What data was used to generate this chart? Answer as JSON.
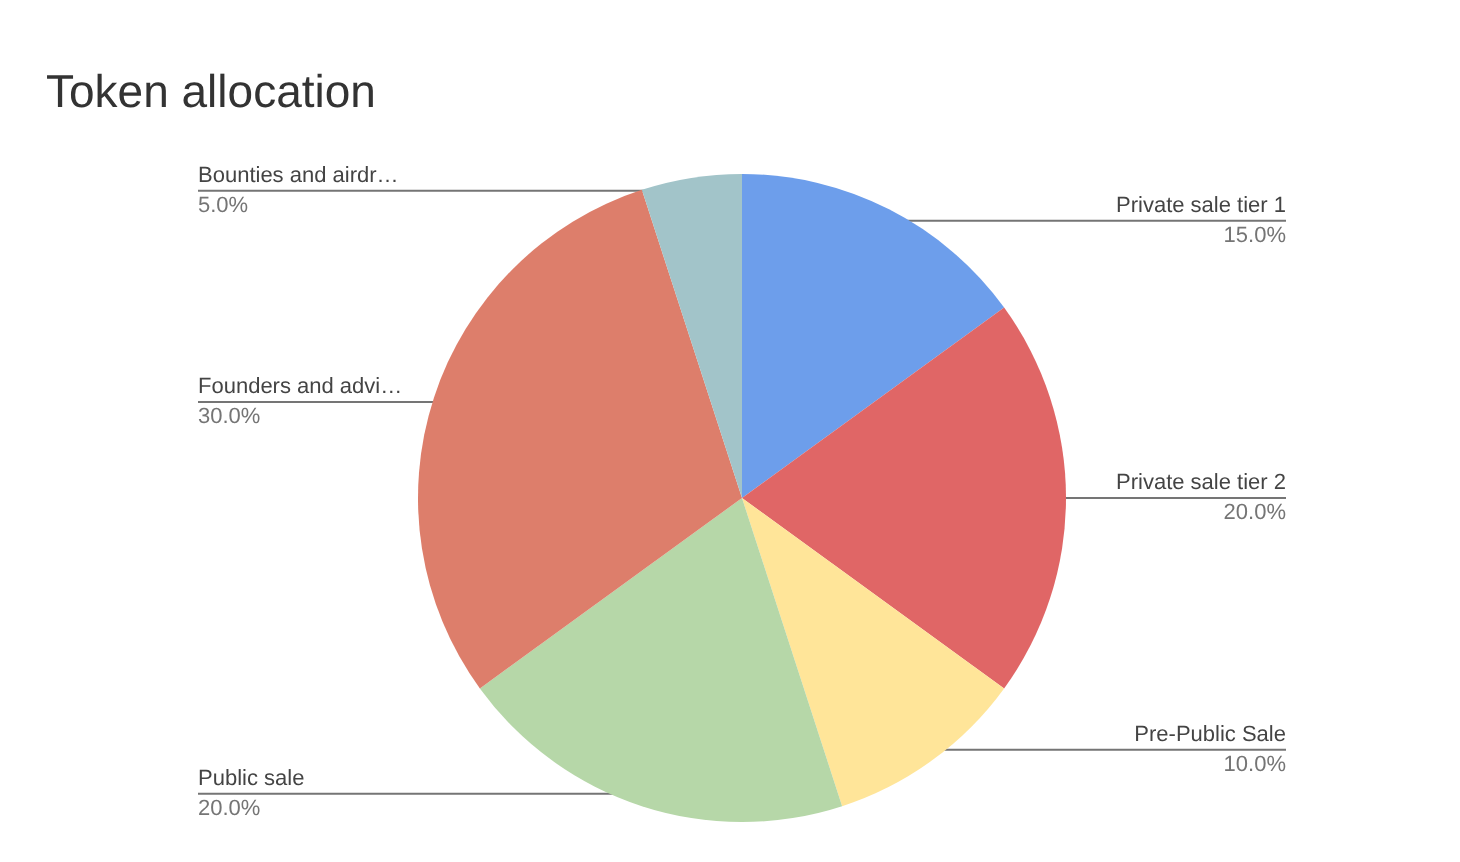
{
  "chart_data": {
    "type": "pie",
    "title": "Token allocation",
    "categories": [
      "Private sale tier 1",
      "Private sale tier 2",
      "Pre-Public Sale",
      "Public sale",
      "Founders and advi…",
      "Bounties and airdr…"
    ],
    "values": [
      15,
      20,
      10,
      20,
      30,
      5
    ],
    "value_labels": [
      "15.0%",
      "20.0%",
      "10.0%",
      "20.0%",
      "30.0%",
      "5.0%"
    ],
    "colors": [
      "#6d9eeb",
      "#e06666",
      "#ffe599",
      "#b6d7a8",
      "#dd7e6b",
      "#a2c4c9"
    ]
  }
}
